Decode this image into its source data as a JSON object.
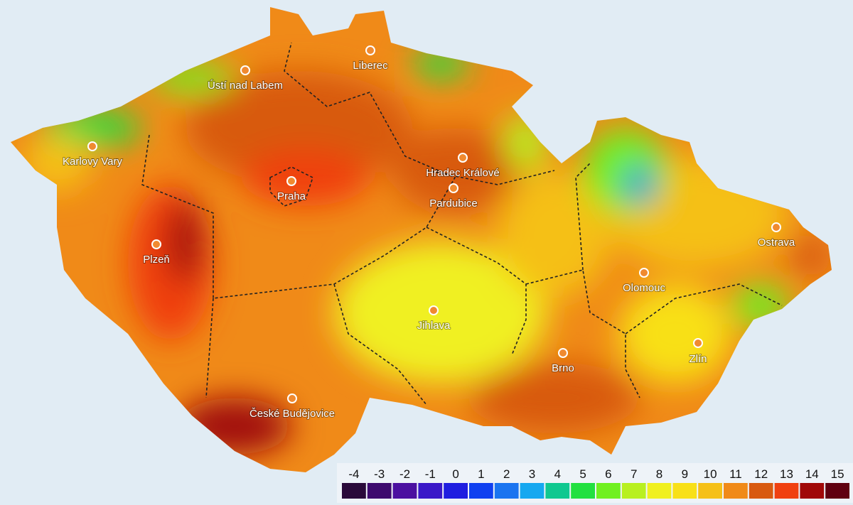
{
  "map": {
    "cities": [
      "Karlovy Vary",
      "Ústí nad Labem",
      "Liberec",
      "Hradec Králové",
      "Praha",
      "Pardubice",
      "Plzeň",
      "Ostrava",
      "Olomouc",
      "Jihlava",
      "Brno",
      "Zlín",
      "České Budějovice"
    ],
    "legend": {
      "values": [
        -4,
        -3,
        -2,
        -1,
        0,
        1,
        2,
        3,
        4,
        5,
        6,
        7,
        8,
        9,
        10,
        11,
        12,
        13,
        14,
        15
      ],
      "colors": [
        "#2a0a3a",
        "#3d0a6e",
        "#4b10a0",
        "#3a18c8",
        "#1f1ee0",
        "#1040f0",
        "#1a74f0",
        "#16a8f0",
        "#10c890",
        "#22e040",
        "#70f020",
        "#b8f020",
        "#f0f020",
        "#f8e018",
        "#f5c018",
        "#f08a18",
        "#d85a10",
        "#f04010",
        "#a00808",
        "#600010"
      ]
    }
  }
}
